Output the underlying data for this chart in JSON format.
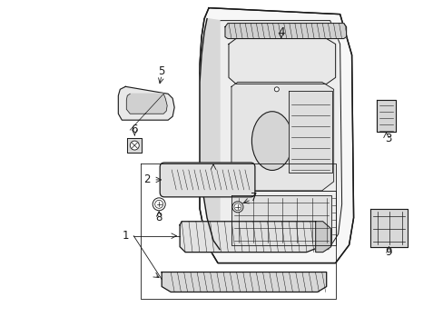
{
  "bg_color": "#ffffff",
  "line_color": "#1a1a1a",
  "fig_width": 4.89,
  "fig_height": 3.6,
  "dpi": 100,
  "label_fontsize": 8.5
}
